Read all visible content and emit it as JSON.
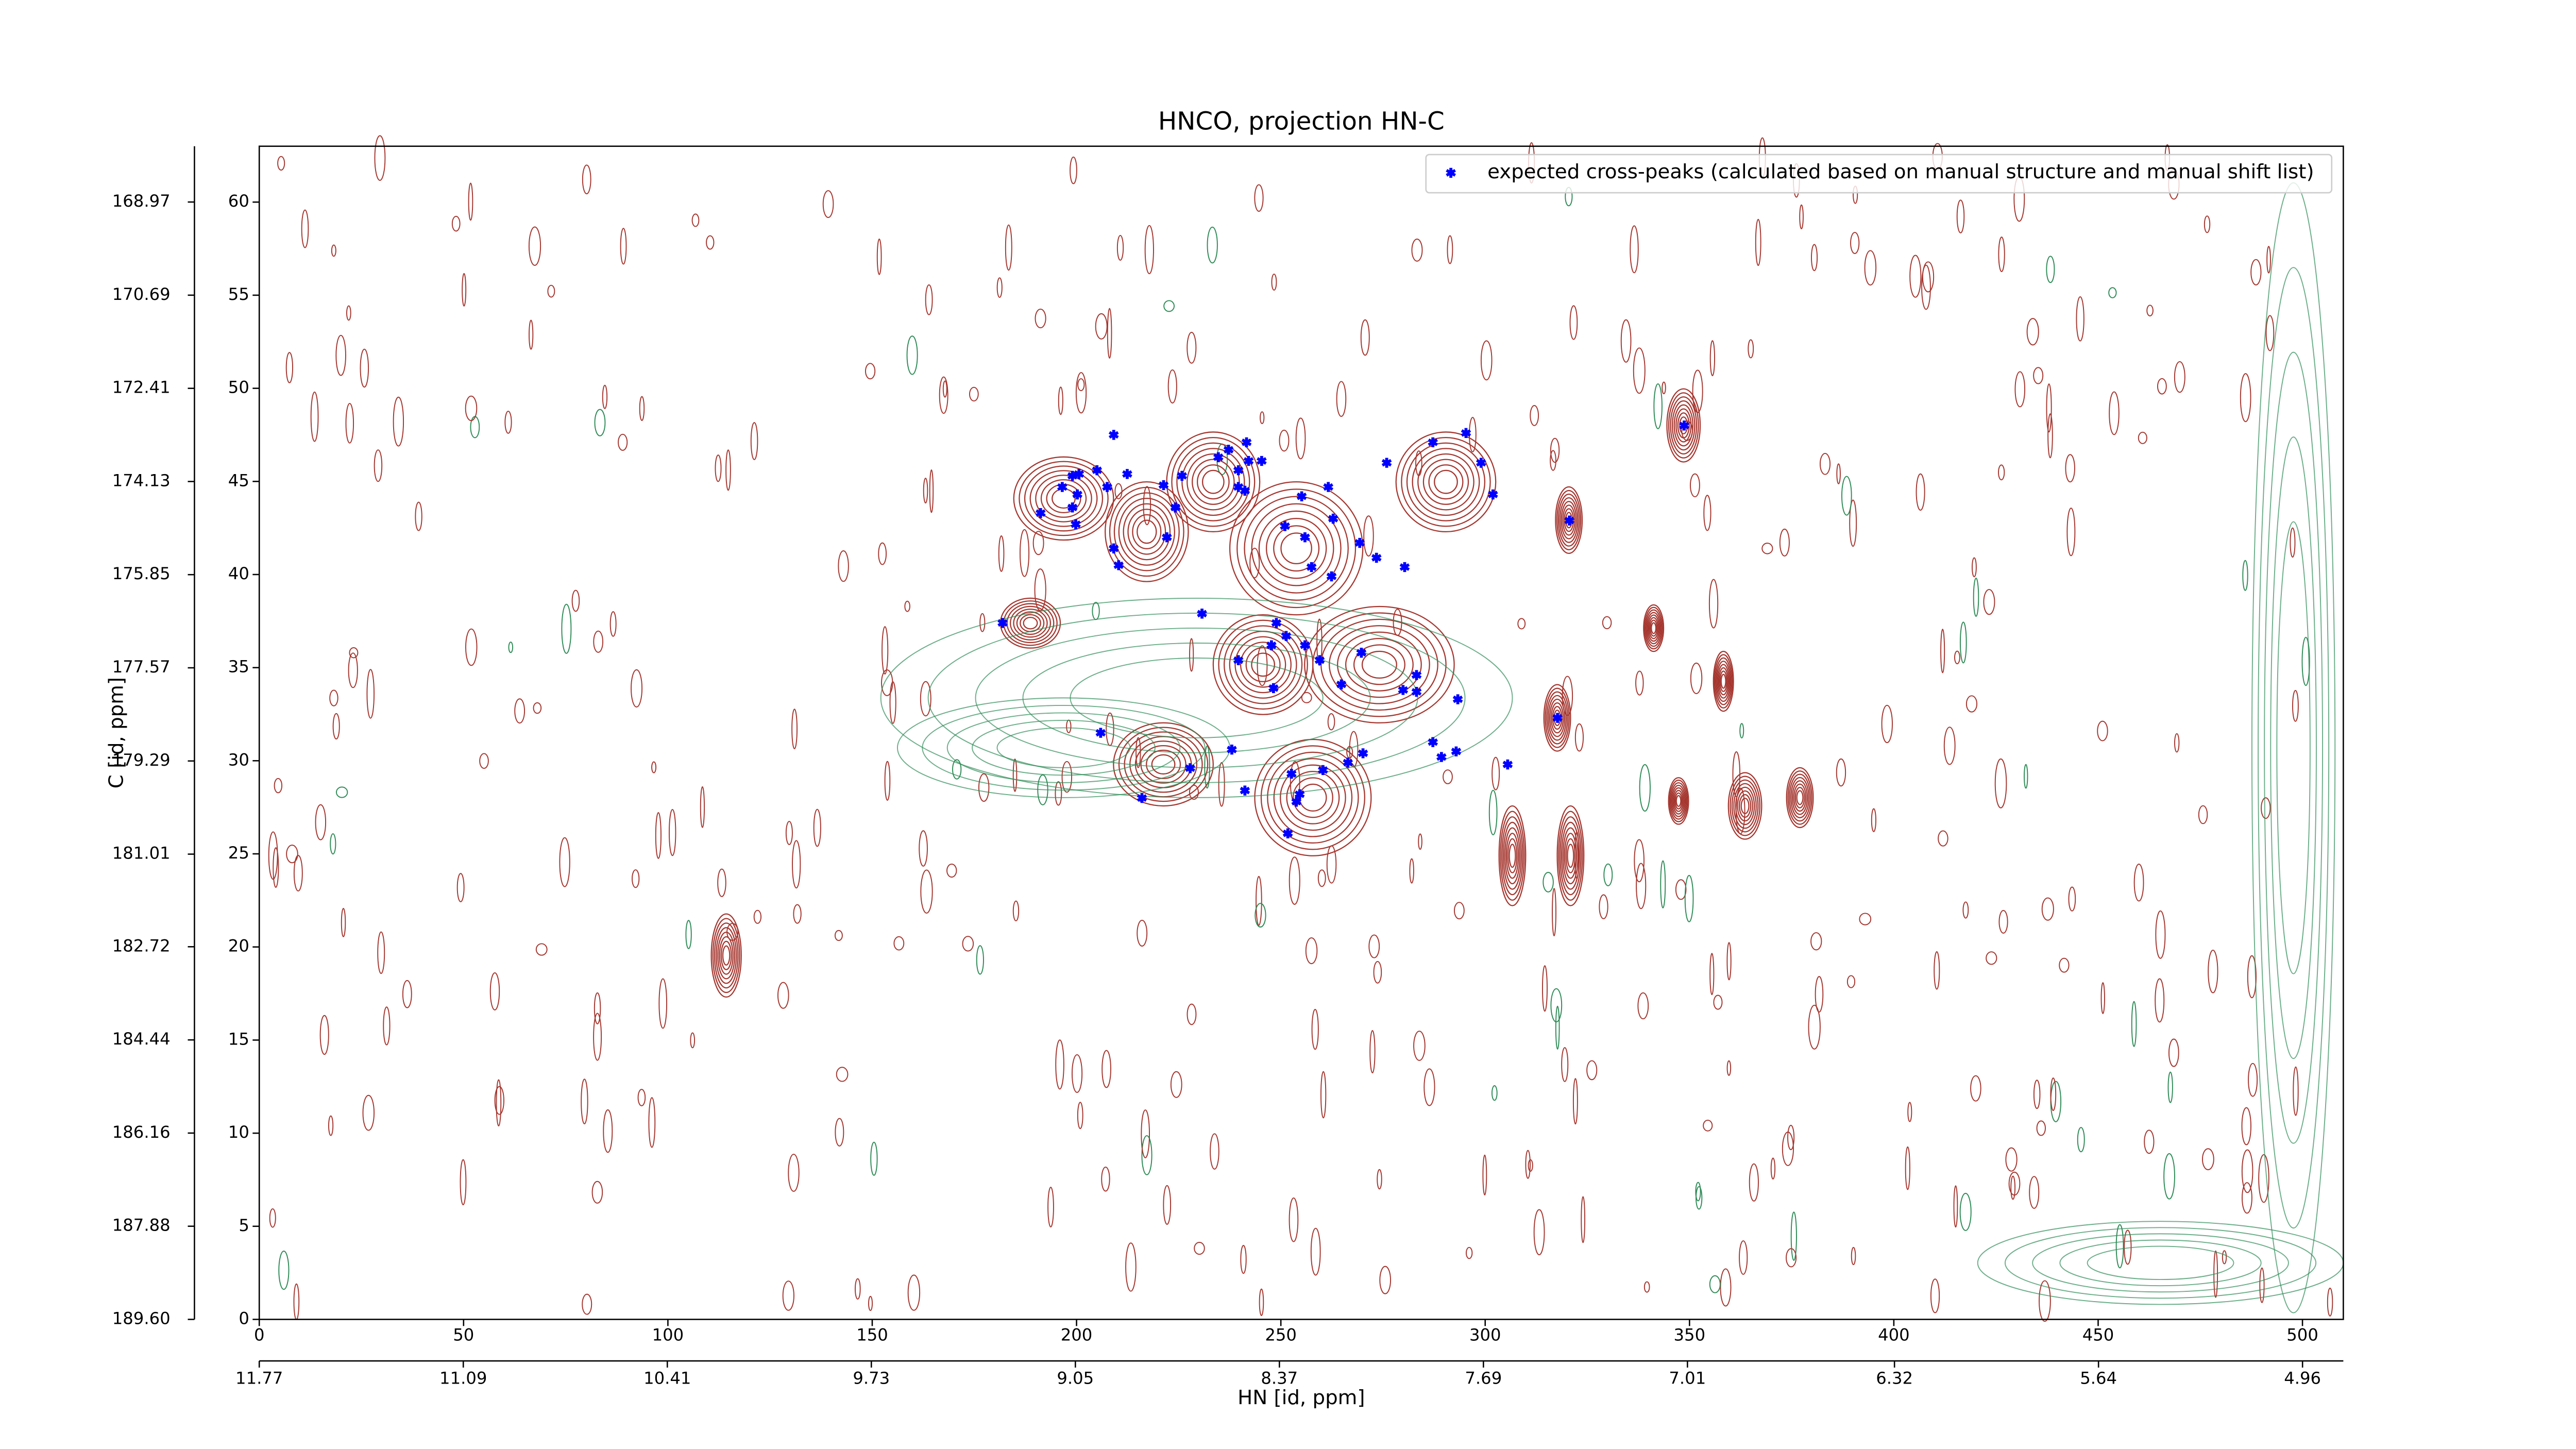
{
  "chart_data": {
    "type": "scatter",
    "title": "HNCO, projection HN-C",
    "x_label": "HN [id, ppm]",
    "y_label": "C [id, ppm]",
    "xlim": [
      0,
      510
    ],
    "ylim": [
      0,
      63
    ],
    "xticks": [
      0,
      50,
      100,
      150,
      200,
      250,
      300,
      350,
      400,
      450,
      500
    ],
    "yticks": [
      0,
      5,
      10,
      15,
      20,
      25,
      30,
      35,
      40,
      45,
      50,
      55,
      60
    ],
    "x2lim": [
      11.77,
      4.824
    ],
    "x2ticks": [
      11.77,
      11.09,
      10.41,
      9.73,
      9.05,
      8.37,
      7.69,
      7.01,
      6.32,
      5.64,
      4.96
    ],
    "y2lim": [
      189.6,
      167.94
    ],
    "y2ticks": [
      {
        "value": 189.6,
        "label": "189.60"
      },
      187.88,
      186.16,
      184.44,
      182.72,
      181.01,
      179.29,
      177.57,
      175.85,
      174.13,
      172.41,
      170.69,
      168.97
    ],
    "legend": "upper right",
    "series": [
      {
        "name": "expected cross-peaks (calculated based on manual structure and manual shift list)",
        "color": "#0000ff",
        "x": [
          181.9,
          191.2,
          196.5,
          199,
          200.6,
          199,
          200.2,
          199.8,
          205,
          207.5,
          209.1,
          212.4,
          209.1,
          210.3,
          221.3,
          222.1,
          224.2,
          225.8,
          234.7,
          237.2,
          239.6,
          241.6,
          242.1,
          245.3,
          239.6,
          241.2,
          251,
          255.1,
          261.6,
          262.8,
          257.5,
          262.4,
          255.9,
          269.3,
          273.4,
          280.3,
          275.9,
          287.2,
          295.3,
          299,
          301.9,
          320.6,
          348.7,
          230.7,
          239.6,
          247.7,
          248.9,
          251.3,
          255.9,
          259.5,
          248.2,
          264.8,
          269.7,
          279.9,
          283.2,
          283.2,
          293.3,
          317.7,
          205.9,
          227.8,
          238,
          241.2,
          252.6,
          254.6,
          253.8,
          260.3,
          266.4,
          270.1,
          287.2,
          289.3,
          292.9,
          305.5,
          216,
          251.7
        ],
        "values": [
          37.4,
          43.3,
          44.7,
          45.3,
          45.4,
          43.6,
          44.3,
          42.7,
          45.6,
          44.7,
          47.5,
          45.4,
          41.4,
          40.5,
          44.8,
          42,
          43.6,
          45.3,
          46.3,
          46.7,
          45.6,
          47.1,
          46.1,
          46.1,
          44.7,
          44.5,
          42.6,
          44.2,
          44.7,
          43,
          40.4,
          39.9,
          42,
          41.7,
          40.9,
          40.4,
          46,
          47.1,
          47.6,
          46,
          44.3,
          42.9,
          48,
          37.9,
          35.4,
          36.2,
          37.4,
          36.7,
          36.2,
          35.4,
          33.9,
          34.1,
          35.8,
          33.8,
          34.6,
          33.7,
          33.3,
          32.3,
          31.5,
          29.6,
          30.6,
          28.4,
          29.3,
          28.2,
          27.8,
          29.5,
          29.9,
          30.4,
          31,
          30.2,
          30.5,
          29.8,
          28,
          26.1
        ]
      }
    ]
  }
}
